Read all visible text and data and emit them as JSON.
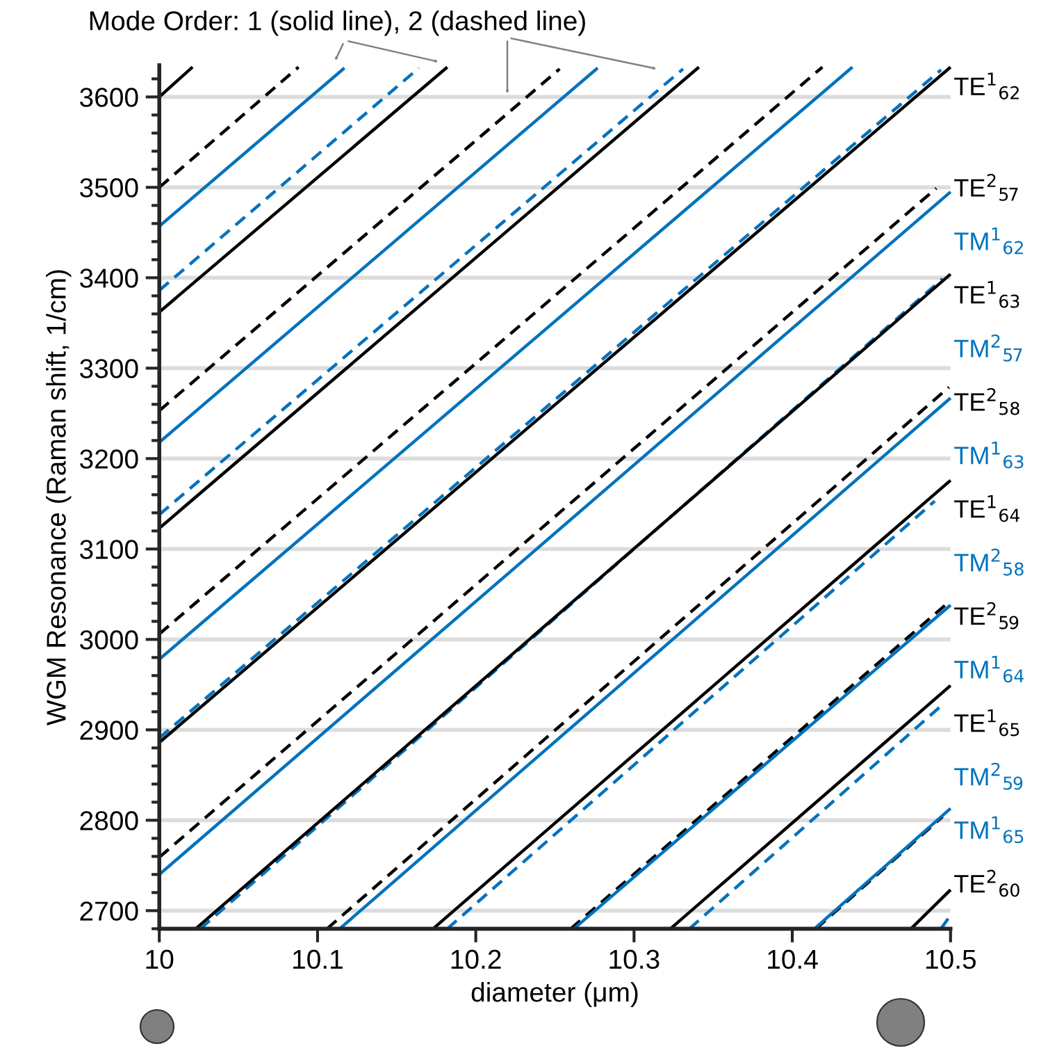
{
  "chart_data": {
    "type": "line",
    "annotations": [
      "Mode Order: 1 (solid line), 2 (dashed line)"
    ],
    "xlabel": "diameter (μm)",
    "ylabel": "WGM Resonance (Raman shift, 1/cm)",
    "xlim": [
      10,
      10.5
    ],
    "xticks": [
      10,
      10.1,
      10.2,
      10.3,
      10.4,
      10.5
    ],
    "ylim": [
      2680,
      3635
    ],
    "yticks": [
      2700,
      2800,
      2900,
      3000,
      3100,
      3200,
      3300,
      3400,
      3500,
      3600
    ],
    "grid": "y",
    "series": [
      {
        "color": "#000000",
        "line_style": "solid",
        "x": [
          10,
          10.021
        ],
        "values": [
          3600,
          3633
        ]
      },
      {
        "color": "#000000",
        "line_style": "dashed",
        "x": [
          10,
          10.088
        ],
        "values": [
          3500,
          3633
        ]
      },
      {
        "color": "#0072bd",
        "line_style": "solid",
        "x": [
          10,
          10.117
        ],
        "values": [
          3457,
          3632
        ]
      },
      {
        "color": "#0072bd",
        "line_style": "dashed",
        "x": [
          10,
          10.164
        ],
        "values": [
          3386,
          3632
        ]
      },
      {
        "color": "#000000",
        "line_style": "solid",
        "x": [
          10,
          10.182
        ],
        "values": [
          3362,
          3633
        ]
      },
      {
        "color": "#000000",
        "line_style": "dashed",
        "x": [
          10,
          10.253
        ],
        "values": [
          3253,
          3631
        ]
      },
      {
        "color": "#0072bd",
        "line_style": "solid",
        "x": [
          10,
          10.277
        ],
        "values": [
          3218,
          3632
        ]
      },
      {
        "color": "#0072bd",
        "line_style": "dashed",
        "x": [
          10,
          10.331
        ],
        "values": [
          3138,
          3631
        ]
      },
      {
        "color": "#000000",
        "line_style": "solid",
        "x": [
          10,
          10.341
        ],
        "values": [
          3123,
          3633
        ]
      },
      {
        "color": "#000000",
        "line_style": "dashed",
        "x": [
          10,
          10.419
        ],
        "values": [
          3006,
          3633
        ]
      },
      {
        "color": "#0072bd",
        "line_style": "solid",
        "x": [
          10,
          10.438
        ],
        "values": [
          2978,
          3633
        ]
      },
      {
        "color": "#0072bd",
        "line_style": "dashed",
        "x": [
          10,
          10.494
        ],
        "values": [
          2891,
          3630
        ]
      },
      {
        "name": "TE$^{1}$$_{62}$",
        "color": "#000000",
        "line_style": "solid",
        "x": [
          10,
          10.5
        ],
        "values": [
          2886,
          3633
        ]
      },
      {
        "name": "TE$^{2}$$_{57}$",
        "color": "#000000",
        "line_style": "dashed",
        "x": [
          10,
          10.491
        ],
        "values": [
          2759,
          3499
        ]
      },
      {
        "name": "TM$^{1}$$_{62}$",
        "color": "#0072bd",
        "line_style": "solid",
        "x": [
          10,
          10.5
        ],
        "values": [
          2740,
          3495
        ]
      },
      {
        "name": "TM$^{2}$$_{57}$",
        "color": "#0072bd",
        "line_style": "dashed",
        "x": [
          10.026,
          10.495
        ],
        "values": [
          2680,
          3399
        ]
      },
      {
        "name": "TE$^{1}$$_{63}$",
        "color": "#000000",
        "line_style": "solid",
        "x": [
          10.023,
          10.5
        ],
        "values": [
          2680,
          3404
        ]
      },
      {
        "name": "TE$^{2}$$_{58}$",
        "color": "#000000",
        "line_style": "dashed",
        "x": [
          10.106,
          10.499
        ],
        "values": [
          2680,
          3279
        ]
      },
      {
        "name": "TM$^{1}$$_{63}$",
        "color": "#0072bd",
        "line_style": "solid",
        "x": [
          10.114,
          10.5
        ],
        "values": [
          2680,
          3267
        ]
      },
      {
        "name": "TM$^{2}$$_{58}$",
        "color": "#0072bd",
        "line_style": "dashed",
        "x": [
          10.182,
          10.49
        ],
        "values": [
          2680,
          3153
        ]
      },
      {
        "name": "TE$^{1}$$_{64}$",
        "color": "#000000",
        "line_style": "solid",
        "x": [
          10.173,
          10.5
        ],
        "values": [
          2680,
          3176
        ]
      },
      {
        "name": "TE$^{2}$$_{59}$",
        "color": "#000000",
        "line_style": "dashed",
        "x": [
          10.26,
          10.5
        ],
        "values": [
          2680,
          3043
        ]
      },
      {
        "name": "TM$^{1}$$_{64}$",
        "color": "#0072bd",
        "line_style": "solid",
        "x": [
          10.262,
          10.5
        ],
        "values": [
          2680,
          3038
        ]
      },
      {
        "name": "TM$^{2}$$_{59}$",
        "color": "#0072bd",
        "line_style": "dashed",
        "x": [
          10.335,
          10.495
        ],
        "values": [
          2680,
          2928
        ]
      },
      {
        "name": "TE$^{1}$$_{65}$",
        "color": "#000000",
        "line_style": "solid",
        "x": [
          10.323,
          10.5
        ],
        "values": [
          2680,
          2949
        ]
      },
      {
        "name": "TE$^{2}$$_{60}$",
        "color": "#000000",
        "line_style": "dashed",
        "x": [
          10.415,
          10.495
        ],
        "values": [
          2680,
          2804
        ]
      },
      {
        "name": "TM$^{1}$$_{65}$",
        "color": "#0072bd",
        "line_style": "solid",
        "x": [
          10.414,
          10.5
        ],
        "values": [
          2680,
          2813
        ]
      },
      {
        "color": "#0072bd",
        "line_style": "dashed",
        "x": [
          10.494,
          10.5
        ],
        "values": [
          2680,
          2695
        ]
      },
      {
        "color": "#000000",
        "line_style": "solid",
        "x": [
          10.475,
          10.5
        ],
        "values": [
          2680,
          2723
        ]
      }
    ]
  }
}
